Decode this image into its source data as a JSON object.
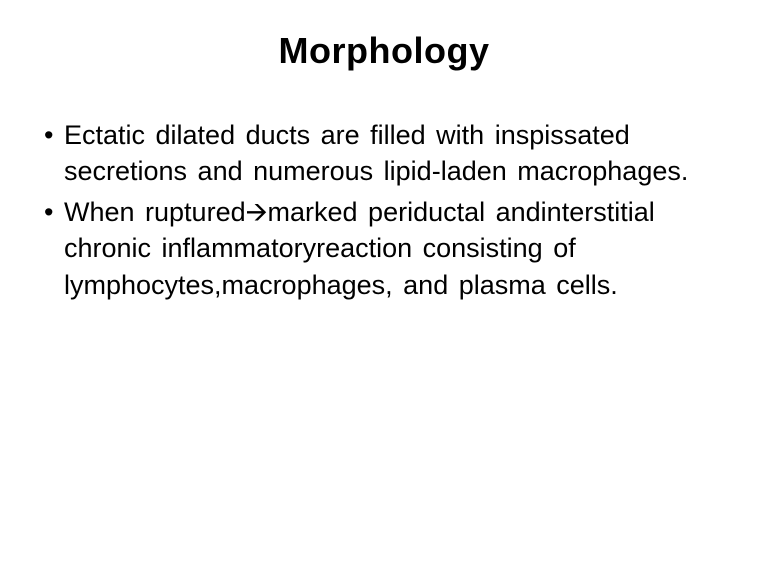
{
  "slide": {
    "title": "Morphology",
    "bullets": [
      "Ectatic  dilated   ducts    are  filled with inspissated secretions and numerous lipid-laden macrophages.",
      "When ruptured🡪marked periductal andinterstitial  chronic inflammatoryreaction      consisting  of lymphocytes,macrophages,      and  plasma   cells."
    ],
    "styling": {
      "background_color": "#ffffff",
      "text_color": "#000000",
      "title_fontsize": 36,
      "title_weight": "bold",
      "body_fontsize": 27,
      "font_family": "Verdana"
    }
  }
}
